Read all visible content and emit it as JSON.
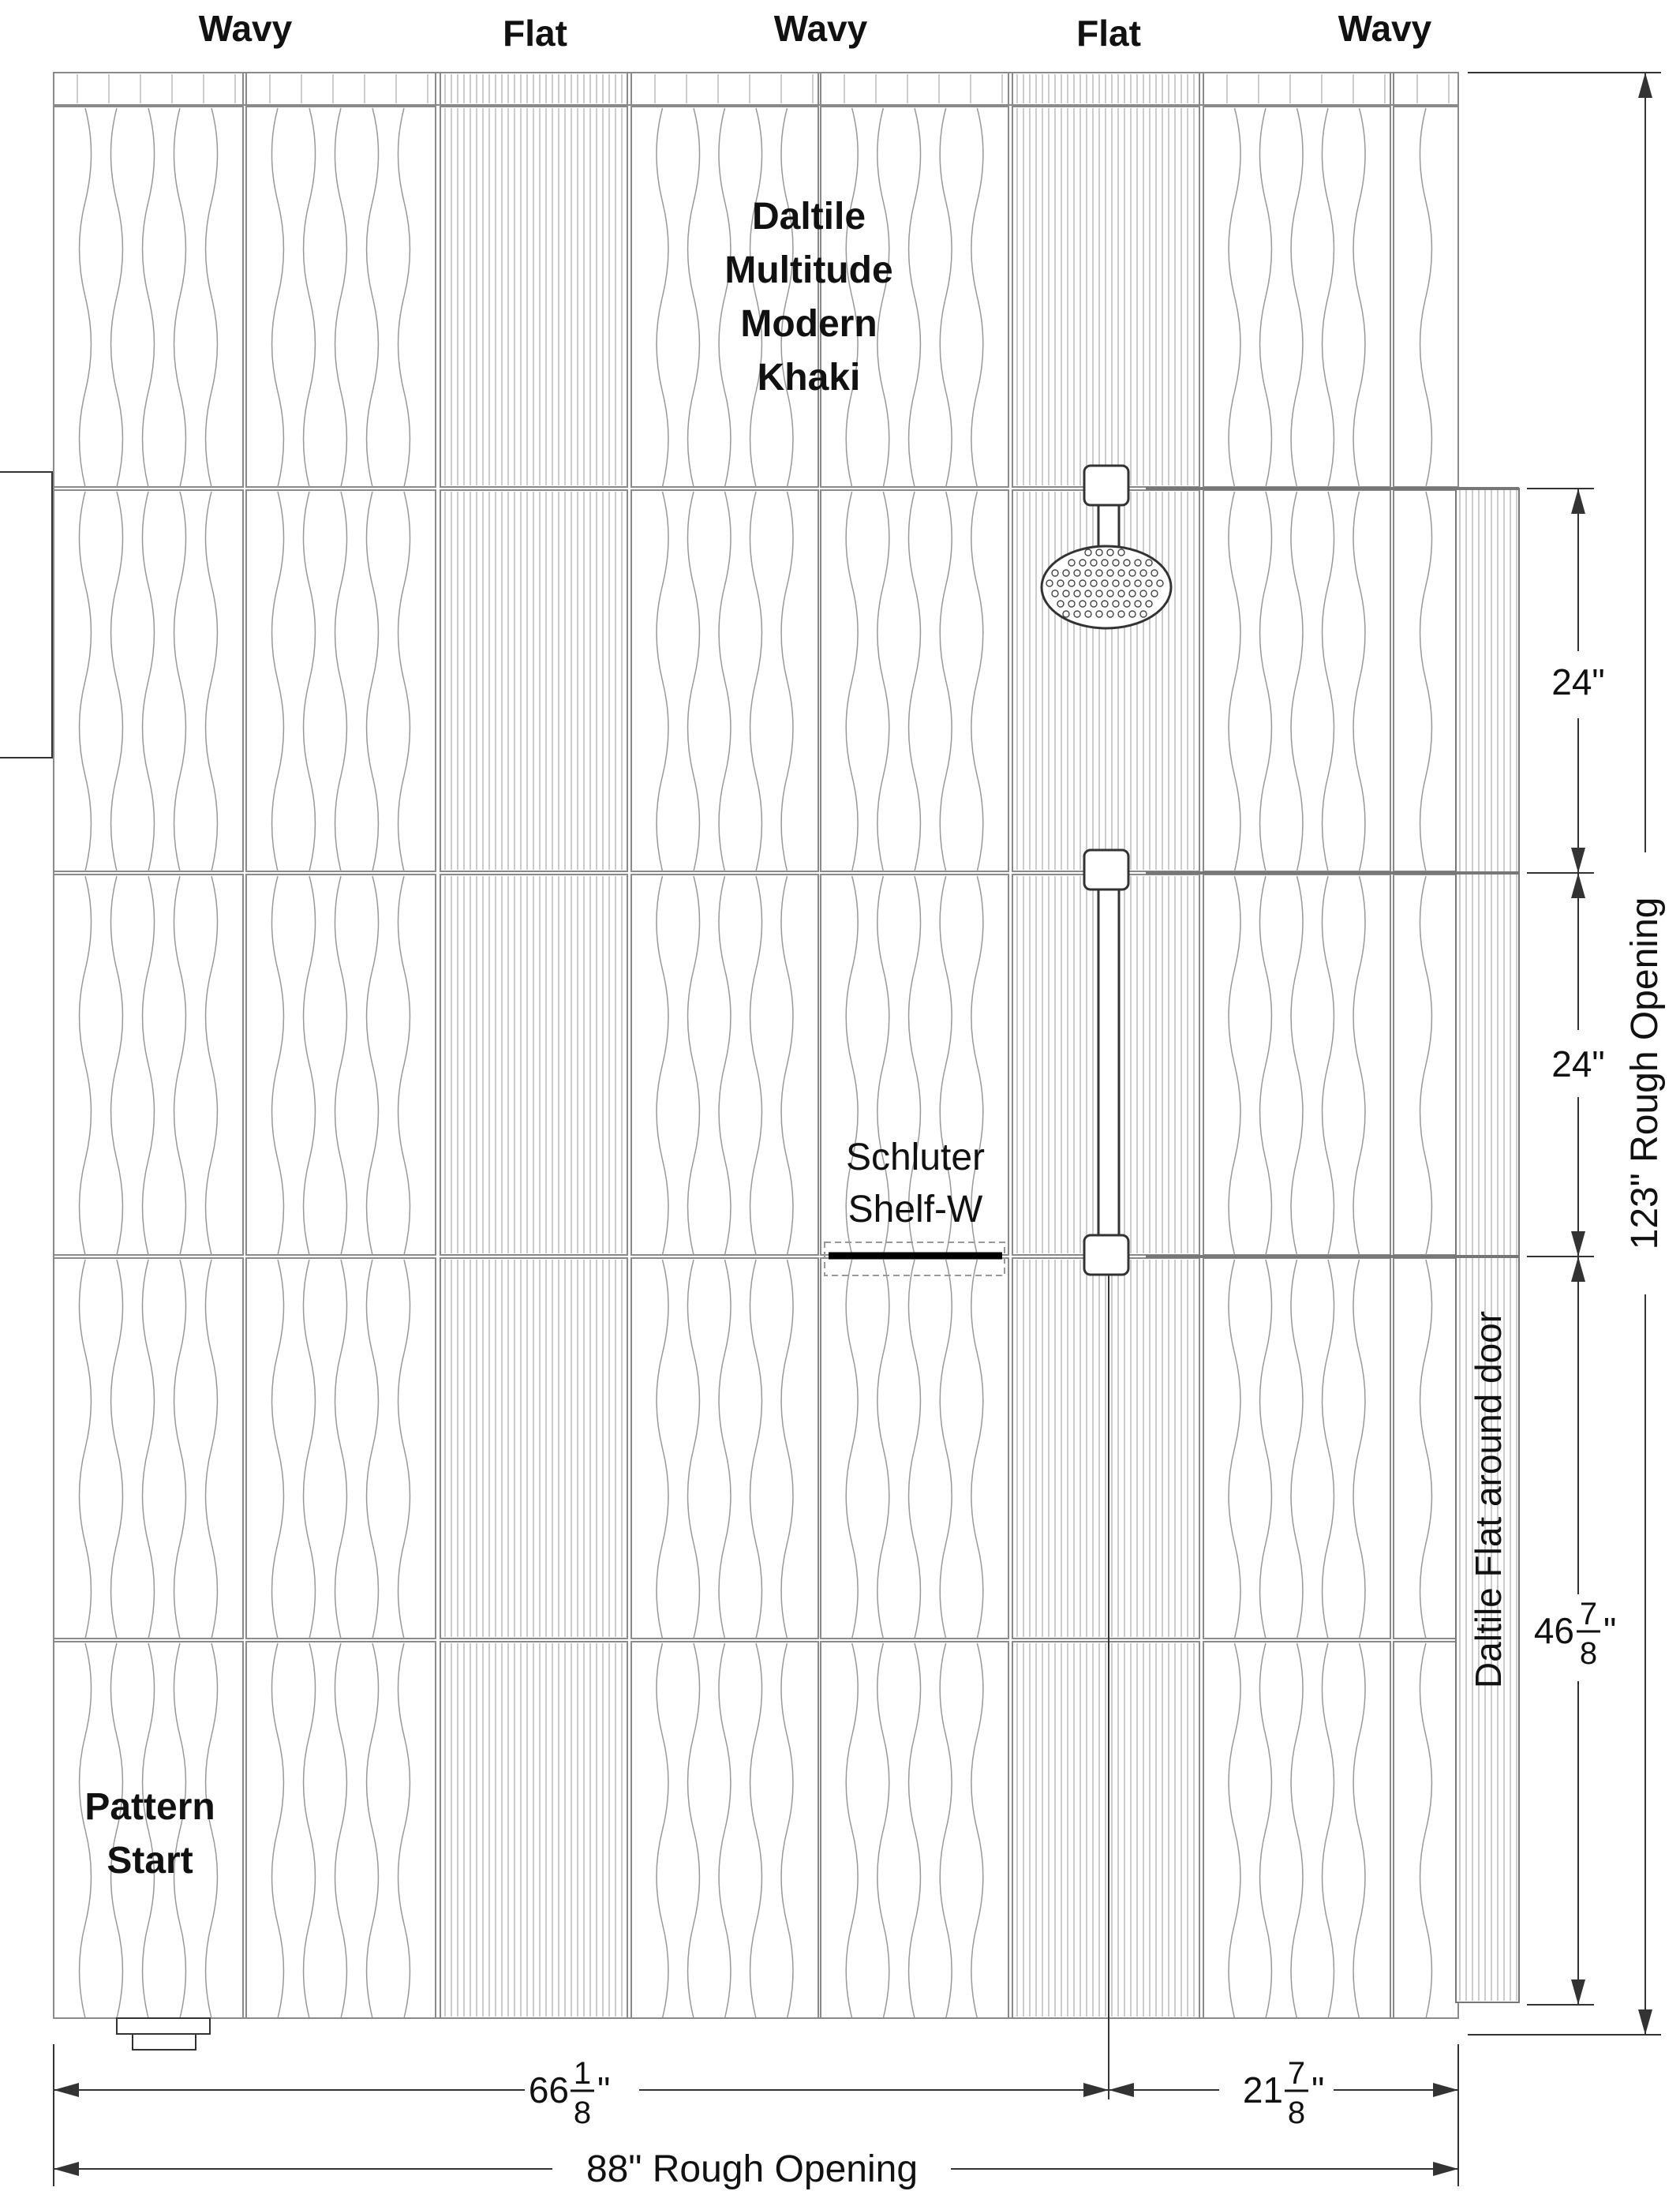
{
  "columns": [
    {
      "label": "Wavy",
      "pattern": "wavy"
    },
    {
      "label": "Flat",
      "pattern": "flat"
    },
    {
      "label": "Wavy",
      "pattern": "wavy"
    },
    {
      "label": "Flat",
      "pattern": "flat"
    },
    {
      "label": "Wavy",
      "pattern": "wavy"
    }
  ],
  "labels": {
    "tile_name": [
      "Daltile",
      "Multitude",
      "Modern",
      "Khaki"
    ],
    "pattern_start": [
      "Pattern",
      "Start"
    ],
    "shelf": [
      "Schluter",
      "Shelf-W"
    ],
    "door_trim": "Daltile Flat around door"
  },
  "dimensions": {
    "vertical_segments": [
      "24\"",
      "24\""
    ],
    "lower_height": {
      "whole": "46",
      "num": "7",
      "den": "8",
      "unit": "\""
    },
    "height_total": "123\" Rough Opening",
    "left_width": {
      "whole": "66",
      "num": "1",
      "den": "8",
      "unit": "\""
    },
    "right_width": {
      "whole": "21",
      "num": "7",
      "den": "8",
      "unit": "\""
    },
    "width_total": "88\" Rough Opening"
  },
  "colors": {
    "tile_line": "#8a8a8a",
    "ink": "#111111",
    "shelf": "#000000"
  }
}
